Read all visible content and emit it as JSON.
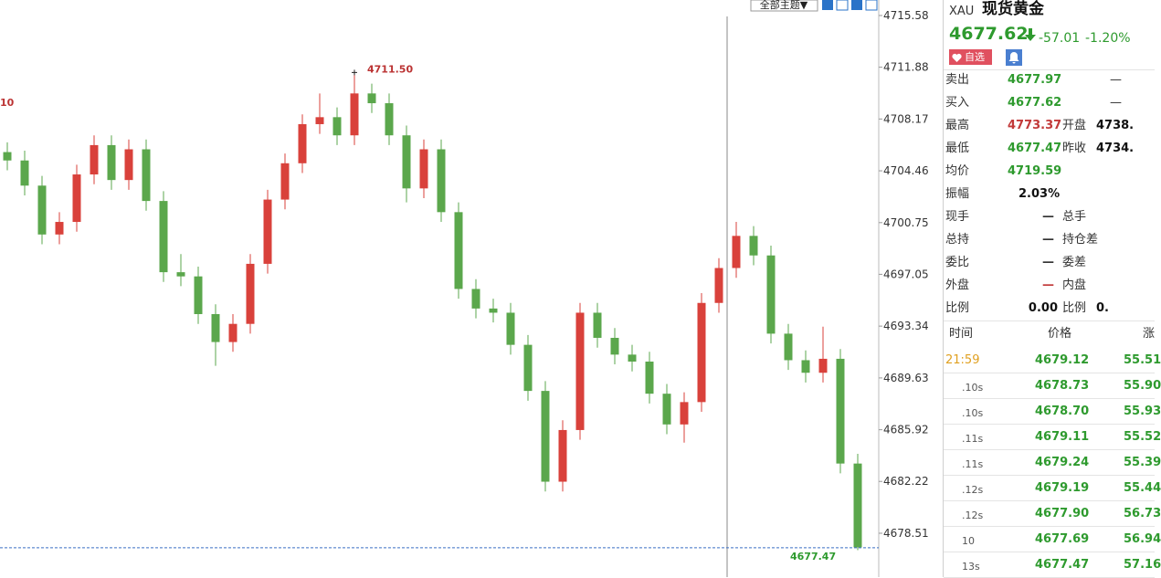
{
  "toolbar": {
    "theme_button": "全部主题▼"
  },
  "chart_data": {
    "type": "candlestick",
    "left_label": "10",
    "open": [
      4705.8,
      4705.2,
      4703.4,
      4699.9,
      4700.8,
      4704.2,
      4706.3,
      4703.8,
      4706.0,
      4702.3,
      4697.2,
      4696.9,
      4694.2,
      4692.2,
      4693.5,
      4697.8,
      4702.4,
      4705.0,
      4707.8,
      4708.3,
      4707.0,
      4710.0,
      4709.3,
      4707.0,
      4703.2,
      4706.0,
      4701.5,
      4696.0,
      4694.6,
      4694.3,
      4692.0,
      4688.7,
      4682.2,
      4685.9,
      4694.3,
      4692.5,
      4691.3,
      4690.8,
      4688.5,
      4686.3,
      4687.9,
      4695.0,
      4697.5,
      4699.8,
      4698.4,
      4692.8,
      4690.9,
      4690.0,
      4691.0,
      4683.5
    ],
    "high": [
      4706.5,
      4705.9,
      4704.1,
      4701.5,
      4704.9,
      4707.0,
      4707.0,
      4706.7,
      4706.7,
      4703.0,
      4698.5,
      4697.6,
      4694.9,
      4694.2,
      4698.5,
      4703.1,
      4705.7,
      4708.5,
      4710.0,
      4709.0,
      4711.5,
      4710.7,
      4710.0,
      4707.7,
      4706.7,
      4706.7,
      4702.2,
      4696.7,
      4695.3,
      4695.0,
      4692.7,
      4689.4,
      4686.6,
      4695.0,
      4695.0,
      4693.2,
      4692.0,
      4691.5,
      4689.2,
      4688.6,
      4695.7,
      4698.2,
      4700.8,
      4700.5,
      4699.1,
      4693.5,
      4691.6,
      4693.3,
      4691.7,
      4684.2
    ],
    "low": [
      4704.5,
      4702.7,
      4699.2,
      4699.2,
      4700.1,
      4703.5,
      4703.1,
      4703.1,
      4701.6,
      4696.5,
      4696.2,
      4693.5,
      4690.5,
      4691.5,
      4692.8,
      4697.1,
      4701.7,
      4704.3,
      4707.1,
      4706.3,
      4706.3,
      4708.6,
      4706.3,
      4702.2,
      4702.5,
      4700.8,
      4695.3,
      4693.9,
      4693.6,
      4691.3,
      4688.0,
      4681.5,
      4681.5,
      4685.2,
      4691.8,
      4690.6,
      4690.1,
      4687.8,
      4685.6,
      4685.0,
      4687.2,
      4694.3,
      4696.8,
      4697.7,
      4692.1,
      4690.2,
      4689.3,
      4689.3,
      4682.8,
      4677.3
    ],
    "close": [
      4705.2,
      4703.4,
      4699.9,
      4700.8,
      4704.2,
      4706.3,
      4703.8,
      4706.0,
      4702.3,
      4697.2,
      4696.9,
      4694.2,
      4692.2,
      4693.5,
      4697.8,
      4702.4,
      4705.0,
      4707.8,
      4708.3,
      4707.0,
      4710.0,
      4709.3,
      4707.0,
      4703.2,
      4706.0,
      4701.5,
      4696.0,
      4694.6,
      4694.3,
      4692.0,
      4688.7,
      4682.2,
      4685.9,
      4694.3,
      4692.5,
      4691.3,
      4690.8,
      4688.5,
      4686.3,
      4687.9,
      4695.0,
      4697.5,
      4699.8,
      4698.4,
      4692.8,
      4690.9,
      4690.0,
      4691.0,
      4683.5,
      4677.5
    ],
    "up_color": "#d9413b",
    "down_color": "#5ba74c",
    "high_label": {
      "value": 4711.5,
      "label": "4711.50"
    },
    "last_price": 4677.47,
    "ylim": [
      4675.37,
      4716.69
    ],
    "yticks": [
      4715.58,
      4711.88,
      4708.17,
      4704.46,
      4700.75,
      4697.05,
      4693.34,
      4689.63,
      4685.92,
      4682.22,
      4678.51
    ]
  },
  "quote_panel": {
    "symbol": "XAU",
    "name": "现货黄金",
    "price": "4677.62",
    "change": "-57.01",
    "change_pct": "-1.20%",
    "watch_button": "自选",
    "rows": [
      {
        "label": "卖出",
        "value": "4677.97",
        "color": "#2e9a2e",
        "value2": "—"
      },
      {
        "label": "买入",
        "value": "4677.62",
        "color": "#2e9a2e",
        "value2": "—"
      },
      {
        "label": "最高",
        "value": "4773.37",
        "color": "#c23a3a",
        "label2": "开盘",
        "value2": "4738."
      },
      {
        "label": "最低",
        "value": "4677.47",
        "color": "#2e9a2e",
        "label2": "昨收",
        "value2": "4734."
      },
      {
        "label": "均价",
        "value": "4719.59",
        "color": "#2e9a2e"
      },
      {
        "label": "振幅",
        "value": "2.03%",
        "color": "#111111"
      },
      {
        "label": "现手",
        "value": "—",
        "color": "#333333",
        "label2": "总手"
      },
      {
        "label": "总持",
        "value": "—",
        "color": "#333333",
        "label2": "持仓差"
      },
      {
        "label": "委比",
        "value": "—",
        "color": "#333333",
        "label2": "委差"
      },
      {
        "label": "外盘",
        "value": "—",
        "color": "#c23a3a",
        "label2": "内盘"
      },
      {
        "label": "比例",
        "value": "0.00",
        "color": "#111111",
        "label2": "比例",
        "value2": "0."
      }
    ]
  },
  "trades": {
    "header": [
      "时间",
      "价格",
      "涨"
    ],
    "rows": [
      {
        "time": "21:59",
        "price": "4679.12",
        "change": "55.51"
      },
      {
        "time": ".10s",
        "price": "4678.73",
        "change": "55.90"
      },
      {
        "time": ".10s",
        "price": "4678.70",
        "change": "55.93"
      },
      {
        "time": ".11s",
        "price": "4679.11",
        "change": "55.52"
      },
      {
        "time": ".11s",
        "price": "4679.24",
        "change": "55.39"
      },
      {
        "time": ".12s",
        "price": "4679.19",
        "change": "55.44"
      },
      {
        "time": ".12s",
        "price": "4677.90",
        "change": "56.73"
      },
      {
        "time": "10",
        "price": "4677.69",
        "change": "56.94"
      },
      {
        "time": "13s",
        "price": "4677.47",
        "change": "57.16"
      }
    ]
  }
}
